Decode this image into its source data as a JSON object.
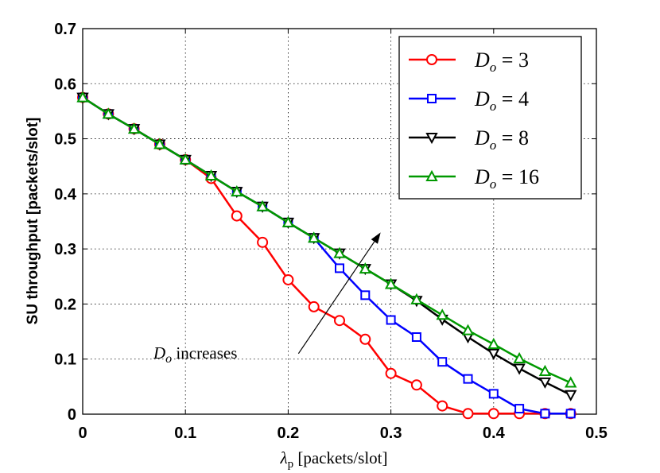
{
  "chart_data": {
    "type": "line",
    "title": "",
    "xlabel_symbol": "λ",
    "xlabel_sub": "p",
    "xlabel_text": " [packets/slot]",
    "ylabel": "SU throughput [packets/slot]",
    "xlim": [
      0,
      0.5
    ],
    "ylim": [
      0,
      0.7
    ],
    "xticks": [
      0,
      0.1,
      0.2,
      0.3,
      0.4,
      0.5
    ],
    "xtick_labels": [
      "0",
      "0.1",
      "0.2",
      "0.3",
      "0.4",
      "0.5"
    ],
    "yticks": [
      0,
      0.1,
      0.2,
      0.3,
      0.4,
      0.5,
      0.6,
      0.7
    ],
    "ytick_labels": [
      "0",
      "0.1",
      "0.2",
      "0.3",
      "0.4",
      "0.5",
      "0.6",
      "0.7"
    ],
    "grid": true,
    "legend_position": "top-right",
    "x": [
      0,
      0.025,
      0.05,
      0.075,
      0.1,
      0.125,
      0.15,
      0.175,
      0.2,
      0.225,
      0.25,
      0.275,
      0.3,
      0.325,
      0.35,
      0.375,
      0.4,
      0.425,
      0.45,
      0.475
    ],
    "series": [
      {
        "name": "D_o = 3",
        "legend_sym": "D",
        "legend_sub": "o",
        "legend_rest": " = 3",
        "color": "#ff0000",
        "marker": "circle",
        "values": [
          0.575,
          0.545,
          0.518,
          0.49,
          0.462,
          0.428,
          0.36,
          0.312,
          0.244,
          0.195,
          0.17,
          0.136,
          0.074,
          0.053,
          0.015,
          0.001,
          0.001,
          0.001,
          0.001,
          0.001
        ]
      },
      {
        "name": "D_o = 4",
        "legend_sym": "D",
        "legend_sub": "o",
        "legend_rest": " = 4",
        "color": "#0000ff",
        "marker": "square",
        "values": [
          0.575,
          0.545,
          0.518,
          0.49,
          0.462,
          0.433,
          0.404,
          0.377,
          0.348,
          0.32,
          0.265,
          0.216,
          0.171,
          0.14,
          0.095,
          0.064,
          0.037,
          0.01,
          0.001,
          0.001
        ]
      },
      {
        "name": "D_o = 8",
        "legend_sym": "D",
        "legend_sub": "o",
        "legend_rest": " = 8",
        "color": "#000000",
        "marker": "triangle-down",
        "values": [
          0.575,
          0.545,
          0.518,
          0.49,
          0.462,
          0.433,
          0.404,
          0.377,
          0.348,
          0.32,
          0.292,
          0.264,
          0.236,
          0.206,
          0.172,
          0.14,
          0.11,
          0.083,
          0.058,
          0.035
        ]
      },
      {
        "name": "D_o = 16",
        "legend_sym": "D",
        "legend_sub": "o",
        "legend_rest": " = 16",
        "color": "#009900",
        "marker": "triangle-up",
        "values": [
          0.575,
          0.545,
          0.518,
          0.49,
          0.462,
          0.433,
          0.404,
          0.377,
          0.348,
          0.32,
          0.292,
          0.264,
          0.236,
          0.208,
          0.18,
          0.152,
          0.127,
          0.101,
          0.078,
          0.057
        ]
      }
    ],
    "annotation": {
      "sym": "D",
      "sub": "o",
      "text": " increases",
      "arrow_from": [
        0.21,
        0.11
      ],
      "arrow_to": [
        0.29,
        0.33
      ]
    }
  }
}
